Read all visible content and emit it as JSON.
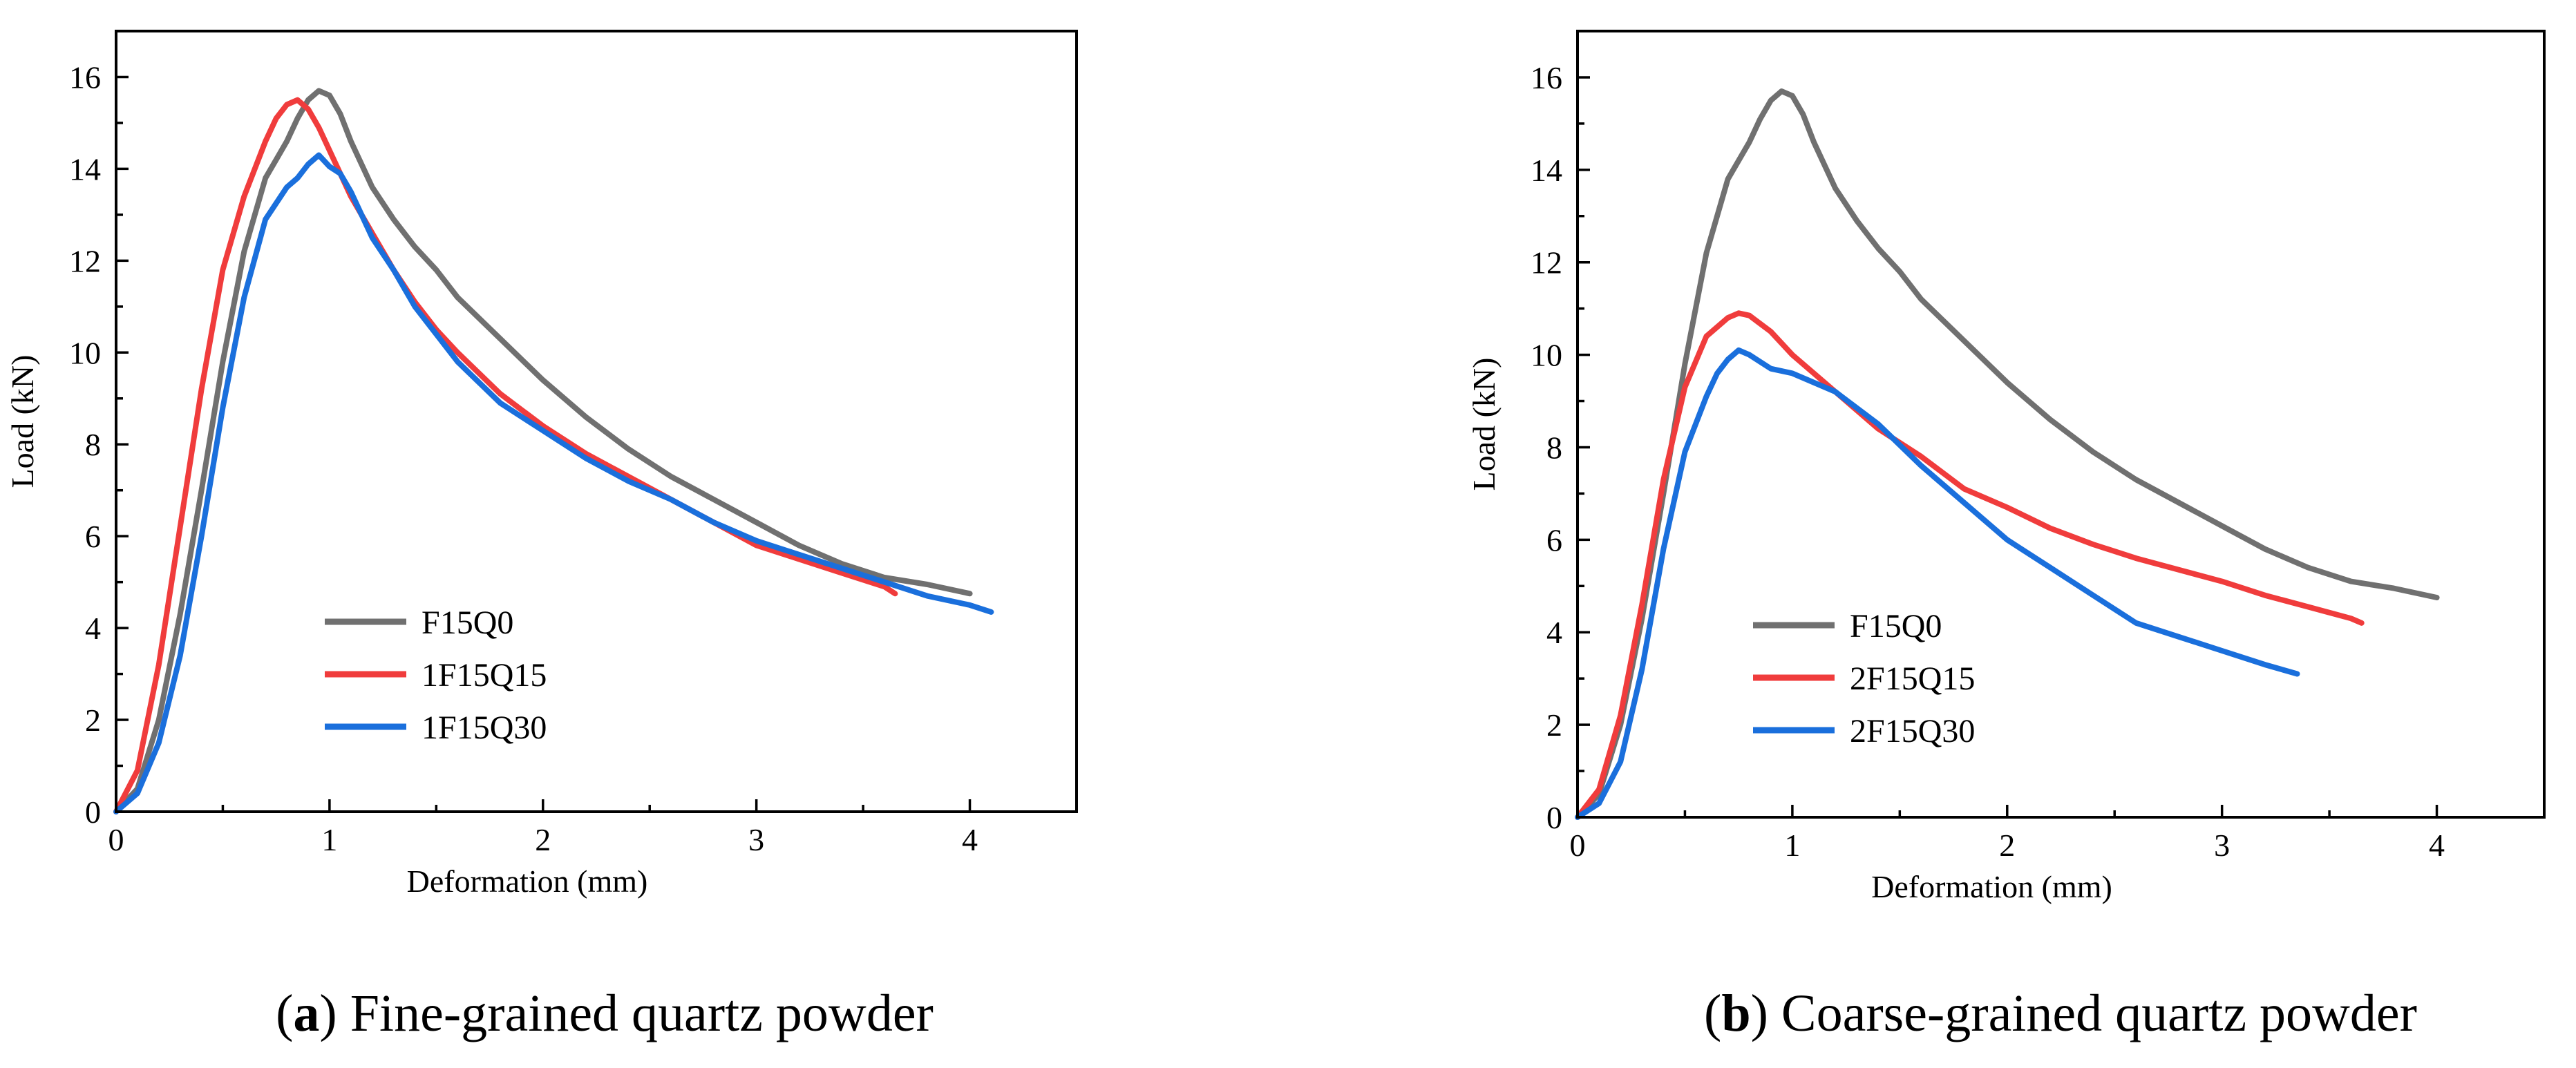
{
  "chart_data": [
    {
      "type": "line",
      "caption": {
        "letter": "a",
        "text": " Fine-grained quartz powder"
      },
      "xlabel": "Deformation (mm)",
      "ylabel": "Load (kN)",
      "xlim": [
        0,
        4.5
      ],
      "ylim": [
        0,
        17
      ],
      "xticks": [
        0,
        1,
        2,
        3,
        4
      ],
      "yticks": [
        0,
        2,
        4,
        6,
        8,
        10,
        12,
        14,
        16
      ],
      "legend_position": "bottom-center",
      "series": [
        {
          "name": "F15Q0",
          "color": "#707070",
          "x": [
            0,
            0.1,
            0.2,
            0.3,
            0.4,
            0.5,
            0.6,
            0.7,
            0.75,
            0.8,
            0.85,
            0.9,
            0.95,
            1.0,
            1.05,
            1.1,
            1.2,
            1.3,
            1.4,
            1.5,
            1.6,
            1.8,
            2.0,
            2.2,
            2.4,
            2.6,
            2.8,
            3.0,
            3.2,
            3.4,
            3.6,
            3.8,
            4.0
          ],
          "y": [
            0,
            0.5,
            2.0,
            4.3,
            7.0,
            9.8,
            12.2,
            13.8,
            14.2,
            14.6,
            15.1,
            15.5,
            15.7,
            15.6,
            15.2,
            14.6,
            13.6,
            12.9,
            12.3,
            11.8,
            11.2,
            10.3,
            9.4,
            8.6,
            7.9,
            7.3,
            6.8,
            6.3,
            5.8,
            5.4,
            5.1,
            4.95,
            4.75
          ]
        },
        {
          "name": "1F15Q15",
          "color": "#f03c3c",
          "x": [
            0,
            0.1,
            0.2,
            0.3,
            0.4,
            0.5,
            0.6,
            0.7,
            0.75,
            0.8,
            0.85,
            0.9,
            0.95,
            1.0,
            1.1,
            1.2,
            1.3,
            1.4,
            1.5,
            1.6,
            1.8,
            2.0,
            2.2,
            2.4,
            2.6,
            2.8,
            3.0,
            3.2,
            3.4,
            3.6,
            3.65
          ],
          "y": [
            0,
            0.9,
            3.2,
            6.2,
            9.2,
            11.8,
            13.4,
            14.6,
            15.1,
            15.4,
            15.5,
            15.3,
            14.9,
            14.4,
            13.4,
            12.6,
            11.8,
            11.1,
            10.5,
            10.0,
            9.1,
            8.4,
            7.8,
            7.3,
            6.8,
            6.3,
            5.8,
            5.5,
            5.2,
            4.9,
            4.75
          ]
        },
        {
          "name": "1F15Q30",
          "color": "#1a6fdc",
          "x": [
            0,
            0.1,
            0.2,
            0.3,
            0.4,
            0.5,
            0.6,
            0.7,
            0.8,
            0.85,
            0.9,
            0.95,
            1.0,
            1.05,
            1.1,
            1.2,
            1.3,
            1.4,
            1.5,
            1.6,
            1.8,
            2.0,
            2.2,
            2.4,
            2.6,
            2.8,
            3.0,
            3.2,
            3.4,
            3.6,
            3.8,
            4.0,
            4.1
          ],
          "y": [
            0,
            0.4,
            1.5,
            3.4,
            6.0,
            8.8,
            11.2,
            12.9,
            13.6,
            13.8,
            14.1,
            14.3,
            14.05,
            13.9,
            13.5,
            12.5,
            11.8,
            11.0,
            10.4,
            9.8,
            8.9,
            8.3,
            7.7,
            7.2,
            6.8,
            6.3,
            5.9,
            5.6,
            5.3,
            5.0,
            4.7,
            4.5,
            4.35
          ]
        }
      ]
    },
    {
      "type": "line",
      "caption": {
        "letter": "b",
        "text": " Coarse-grained quartz powder"
      },
      "xlabel": "Deformation (mm)",
      "ylabel": "Load (kN)",
      "xlim": [
        0,
        4.5
      ],
      "ylim": [
        0,
        17
      ],
      "xticks": [
        0,
        1,
        2,
        3,
        4
      ],
      "yticks": [
        0,
        2,
        4,
        6,
        8,
        10,
        12,
        14,
        16
      ],
      "legend_position": "bottom-center",
      "series": [
        {
          "name": "F15Q0",
          "color": "#707070",
          "x": [
            0,
            0.1,
            0.2,
            0.3,
            0.4,
            0.5,
            0.6,
            0.7,
            0.75,
            0.8,
            0.85,
            0.9,
            0.95,
            1.0,
            1.05,
            1.1,
            1.2,
            1.3,
            1.4,
            1.5,
            1.6,
            1.8,
            2.0,
            2.2,
            2.4,
            2.6,
            2.8,
            3.0,
            3.2,
            3.4,
            3.6,
            3.8,
            4.0
          ],
          "y": [
            0,
            0.5,
            2.0,
            4.3,
            7.0,
            9.8,
            12.2,
            13.8,
            14.2,
            14.6,
            15.1,
            15.5,
            15.7,
            15.6,
            15.2,
            14.6,
            13.6,
            12.9,
            12.3,
            11.8,
            11.2,
            10.3,
            9.4,
            8.6,
            7.9,
            7.3,
            6.8,
            6.3,
            5.8,
            5.4,
            5.1,
            4.95,
            4.75
          ]
        },
        {
          "name": "2F15Q15",
          "color": "#f03c3c",
          "x": [
            0,
            0.1,
            0.2,
            0.3,
            0.4,
            0.5,
            0.6,
            0.7,
            0.75,
            0.8,
            0.9,
            1.0,
            1.2,
            1.4,
            1.6,
            1.8,
            2.0,
            2.2,
            2.4,
            2.6,
            2.8,
            3.0,
            3.2,
            3.4,
            3.6,
            3.65
          ],
          "y": [
            0,
            0.6,
            2.2,
            4.6,
            7.3,
            9.3,
            10.4,
            10.8,
            10.9,
            10.85,
            10.5,
            10.0,
            9.2,
            8.4,
            7.8,
            7.1,
            6.7,
            6.25,
            5.9,
            5.6,
            5.35,
            5.1,
            4.8,
            4.55,
            4.3,
            4.2
          ]
        },
        {
          "name": "2F15Q30",
          "color": "#1a6fdc",
          "x": [
            0,
            0.1,
            0.2,
            0.3,
            0.4,
            0.5,
            0.6,
            0.65,
            0.7,
            0.75,
            0.8,
            0.9,
            1.0,
            1.2,
            1.4,
            1.6,
            1.8,
            2.0,
            2.2,
            2.4,
            2.6,
            2.8,
            3.0,
            3.2,
            3.35
          ],
          "y": [
            0,
            0.3,
            1.2,
            3.2,
            5.8,
            7.9,
            9.1,
            9.6,
            9.9,
            10.1,
            10.0,
            9.7,
            9.6,
            9.2,
            8.5,
            7.6,
            6.8,
            6.0,
            5.4,
            4.8,
            4.2,
            3.9,
            3.6,
            3.3,
            3.1
          ]
        }
      ]
    }
  ]
}
